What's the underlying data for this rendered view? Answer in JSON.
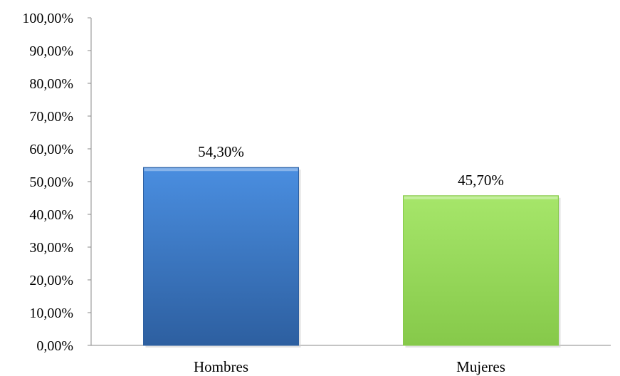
{
  "chart_data": {
    "type": "bar",
    "title": "",
    "xlabel": "",
    "ylabel": "",
    "categories": [
      "Hombres",
      "Mujeres"
    ],
    "values": [
      54.3,
      45.7
    ],
    "value_labels": [
      "54,30%",
      "45,70%"
    ],
    "ylim": [
      0,
      100
    ],
    "y_ticks": [
      0,
      10,
      20,
      30,
      40,
      50,
      60,
      70,
      80,
      90,
      100
    ],
    "y_tick_labels": [
      "0,00%",
      "10,00%",
      "20,00%",
      "30,00%",
      "40,00%",
      "50,00%",
      "60,00%",
      "70,00%",
      "80,00%",
      "90,00%",
      "100,00%"
    ],
    "grid": false,
    "legend": "none",
    "colors": {
      "Hombres": {
        "light": "#4a8ee0",
        "dark": "#2d5fa0"
      },
      "Mujeres": {
        "light": "#a6e66a",
        "dark": "#86c94a"
      }
    }
  }
}
